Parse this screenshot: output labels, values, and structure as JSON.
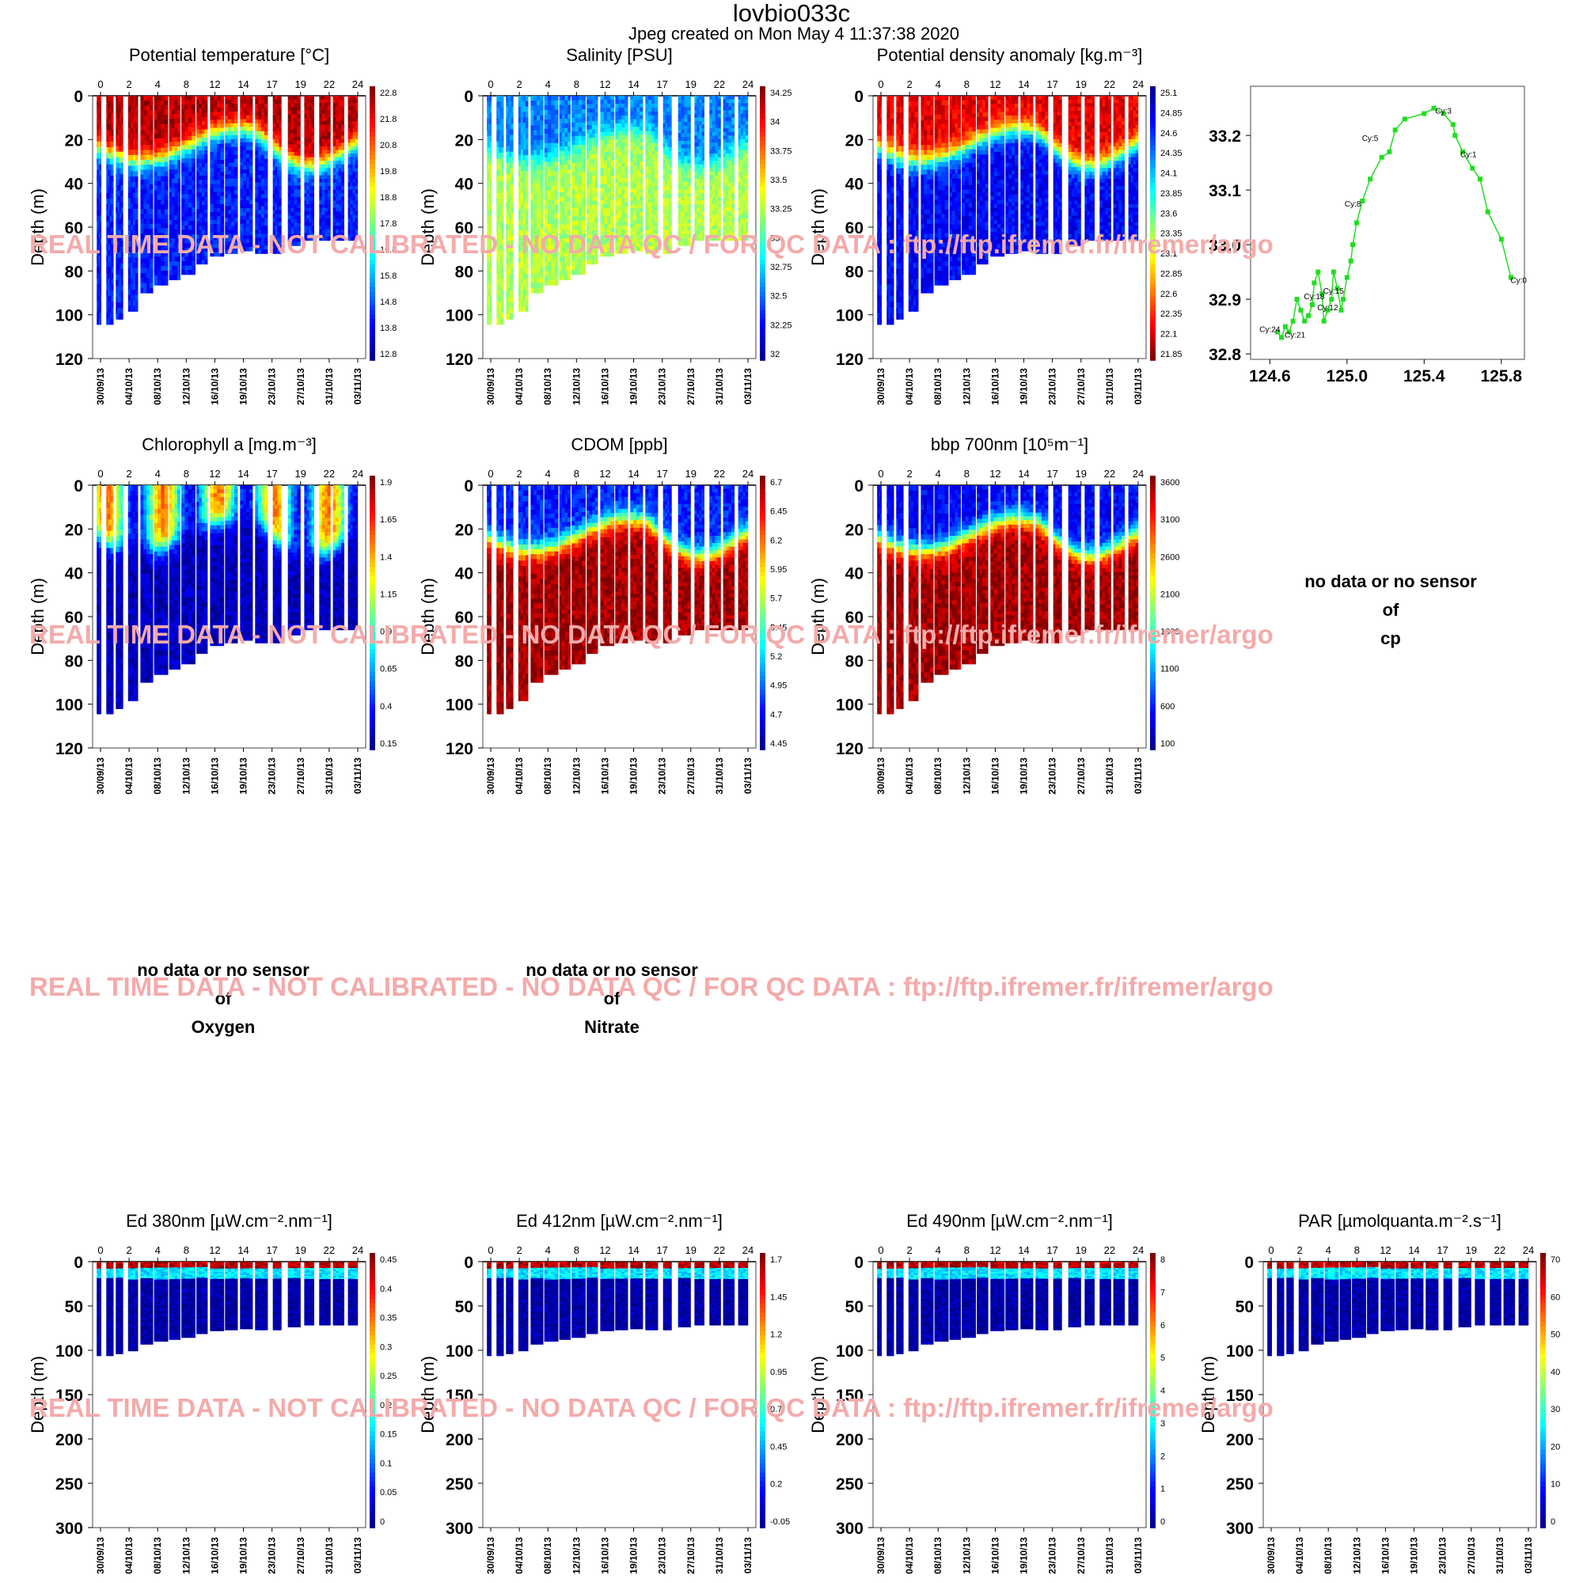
{
  "header": {
    "title": "lovbio033c",
    "subtitle": "Jpeg created on  Mon May  4 11:37:38 2020"
  },
  "watermark": "REAL TIME DATA - NOT CALIBRATED - NO DATA QC   /  FOR QC DATA : ftp://ftp.ifremer.fr/ifremer/argo",
  "colors": {
    "colormap": [
      "#00008f",
      "#0000ff",
      "#0080ff",
      "#00ffff",
      "#80ff80",
      "#ffff00",
      "#ff8000",
      "#ff0000",
      "#800000"
    ],
    "trajectory": "#22dd22",
    "watermark": "#f4aaaa"
  },
  "time_axis": {
    "top_ticks": [
      "0",
      "2",
      "4",
      "8",
      "12",
      "14",
      "17",
      "19",
      "22",
      "24"
    ],
    "bottom_ticks": [
      "30/09/13",
      "04/10/13",
      "08/10/13",
      "12/10/13",
      "16/10/13",
      "19/10/13",
      "23/10/13",
      "27/10/13",
      "31/10/13",
      "03/11/13"
    ]
  },
  "chart_data": [
    {
      "type": "heatmap",
      "id": "temperature",
      "title": "Potential temperature [°C]",
      "ylabel": "Depth (m)",
      "yticks": [
        "0",
        "20",
        "40",
        "60",
        "80",
        "100",
        "120"
      ],
      "ylim": [
        120,
        0
      ],
      "colorbar": [
        "22.8",
        "21.8",
        "20.8",
        "19.8",
        "18.8",
        "17.8",
        "16.8",
        "15.8",
        "14.8",
        "13.8",
        "12.8"
      ],
      "pattern": "stratified",
      "low_frac": 0.15,
      "high_frac": 0.95
    },
    {
      "type": "heatmap",
      "id": "salinity",
      "title": "Salinity [PSU]",
      "ylabel": "Depth (m)",
      "yticks": [
        "0",
        "20",
        "40",
        "60",
        "80",
        "100",
        "120"
      ],
      "ylim": [
        120,
        0
      ],
      "colorbar": [
        "34.25",
        "34",
        "33.75",
        "33.5",
        "33.25",
        "33",
        "32.75",
        "32.5",
        "32.25",
        "32"
      ],
      "pattern": "inverted",
      "low_frac": 0.25,
      "high_frac": 0.55
    },
    {
      "type": "heatmap",
      "id": "density",
      "title": "Potential density anomaly [kg.m⁻³]",
      "ylabel": "Depth (m)",
      "yticks": [
        "0",
        "20",
        "40",
        "60",
        "80",
        "100",
        "120"
      ],
      "ylim": [
        120,
        0
      ],
      "colorbar": [
        "25.1",
        "24.85",
        "24.6",
        "24.35",
        "24.1",
        "23.85",
        "23.6",
        "23.35",
        "23.1",
        "22.85",
        "22.6",
        "22.35",
        "22.1",
        "21.85"
      ],
      "colorbar_reversed": true,
      "pattern": "stratified",
      "low_frac": 0.12,
      "high_frac": 0.9
    },
    {
      "type": "line",
      "id": "trajectory",
      "xticks": [
        "124.6",
        "125.0",
        "125.4",
        "125.8"
      ],
      "yticks": [
        "32.8",
        "32.9",
        "33.0",
        "33.1",
        "33.2"
      ],
      "xlim": [
        124.5,
        125.92
      ],
      "ylim": [
        32.79,
        33.29
      ],
      "labels": [
        {
          "text": "Cy:0",
          "x": 125.89,
          "y": 32.93
        },
        {
          "text": "Cy:1",
          "x": 125.63,
          "y": 33.16
        },
        {
          "text": "Cy:3",
          "x": 125.5,
          "y": 33.24
        },
        {
          "text": "Cy:5",
          "x": 125.12,
          "y": 33.19
        },
        {
          "text": "Cy:8",
          "x": 125.03,
          "y": 33.07
        },
        {
          "text": "Cy:15",
          "x": 124.93,
          "y": 32.91
        },
        {
          "text": "Cy:18",
          "x": 124.83,
          "y": 32.9
        },
        {
          "text": "Cy:12",
          "x": 124.9,
          "y": 32.88
        },
        {
          "text": "Cy:24",
          "x": 124.6,
          "y": 32.84
        },
        {
          "text": "Cy:21",
          "x": 124.73,
          "y": 32.83
        }
      ],
      "x": [
        125.85,
        125.8,
        125.73,
        125.69,
        125.65,
        125.6,
        125.56,
        125.55,
        125.5,
        125.45,
        125.4,
        125.3,
        125.25,
        125.22,
        125.18,
        125.12,
        125.08,
        125.05,
        125.03,
        125.02,
        125.0,
        124.98,
        124.97,
        124.95,
        124.93,
        124.92,
        124.9,
        124.88,
        124.87,
        124.85,
        124.83,
        124.82,
        124.8,
        124.78,
        124.76,
        124.74,
        124.72,
        124.7,
        124.68,
        124.66,
        124.64
      ],
      "y": [
        32.94,
        33.01,
        33.06,
        33.12,
        33.14,
        33.17,
        33.2,
        33.22,
        33.24,
        33.25,
        33.24,
        33.23,
        33.21,
        33.17,
        33.16,
        33.12,
        33.08,
        33.04,
        33.0,
        32.97,
        32.94,
        32.9,
        32.88,
        32.92,
        32.95,
        32.9,
        32.88,
        32.86,
        32.91,
        32.95,
        32.93,
        32.89,
        32.87,
        32.86,
        32.88,
        32.9,
        32.86,
        32.84,
        32.85,
        32.83,
        32.84
      ]
    },
    {
      "type": "heatmap",
      "id": "chla",
      "title": "Chlorophyll a [mg.m⁻³]",
      "ylabel": "Depth (m)",
      "yticks": [
        "0",
        "20",
        "40",
        "60",
        "80",
        "100",
        "120"
      ],
      "ylim": [
        120,
        0
      ],
      "colorbar": [
        "1.9",
        "1.65",
        "1.4",
        "1.15",
        "0.9",
        "0.65",
        "0.4",
        "0.15"
      ],
      "pattern": "surface_patchy",
      "low_frac": 0.05,
      "high_frac": 0.7
    },
    {
      "type": "heatmap",
      "id": "cdom",
      "title": "CDOM  [ppb]",
      "ylabel": "Depth (m)",
      "yticks": [
        "0",
        "20",
        "40",
        "60",
        "80",
        "100",
        "120"
      ],
      "ylim": [
        120,
        0
      ],
      "colorbar": [
        "6.7",
        "6.45",
        "6.2",
        "5.95",
        "5.7",
        "5.45",
        "5.2",
        "4.95",
        "4.7",
        "4.45"
      ],
      "pattern": "inverted",
      "low_frac": 0.15,
      "high_frac": 0.97
    },
    {
      "type": "heatmap",
      "id": "bbp",
      "title": "bbp 700nm [10⁵m⁻¹]",
      "ylabel": "Depth (m)",
      "yticks": [
        "0",
        "20",
        "40",
        "60",
        "80",
        "100",
        "120"
      ],
      "ylim": [
        120,
        0
      ],
      "colorbar": [
        "3600",
        "3100",
        "2600",
        "2100",
        "1600",
        "1100",
        "600",
        "100"
      ],
      "pattern": "inverted",
      "low_frac": 0.12,
      "high_frac": 0.97
    },
    {
      "type": "heatmap",
      "id": "ed380",
      "title": "Ed 380nm [µW.cm⁻².nm⁻¹]",
      "ylabel": "Depth (m)",
      "yticks": [
        "0",
        "50",
        "100",
        "150",
        "200",
        "250",
        "300"
      ],
      "ylim": [
        310,
        0
      ],
      "colorbar": [
        "0.45",
        "0.4",
        "0.35",
        "0.3",
        "0.25",
        "0.2",
        "0.15",
        "0.1",
        "0.05",
        "0"
      ],
      "pattern": "irradiance",
      "low_frac": 0.02,
      "high_frac": 0.95
    },
    {
      "type": "heatmap",
      "id": "ed412",
      "title": "Ed 412nm [µW.cm⁻².nm⁻¹]",
      "ylabel": "Depth (m)",
      "yticks": [
        "0",
        "50",
        "100",
        "150",
        "200",
        "250",
        "300"
      ],
      "ylim": [
        310,
        0
      ],
      "colorbar": [
        "1.7",
        "1.45",
        "1.2",
        "0.95",
        "0.7",
        "0.45",
        "0.2",
        "-0.05"
      ],
      "pattern": "irradiance",
      "low_frac": 0.02,
      "high_frac": 0.95
    },
    {
      "type": "heatmap",
      "id": "ed490",
      "title": "Ed 490nm [µW.cm⁻².nm⁻¹]",
      "ylabel": "Depth (m)",
      "yticks": [
        "0",
        "50",
        "100",
        "150",
        "200",
        "250",
        "300"
      ],
      "ylim": [
        310,
        0
      ],
      "colorbar": [
        "8",
        "7",
        "6",
        "5",
        "4",
        "3",
        "2",
        "1",
        "0"
      ],
      "pattern": "irradiance",
      "low_frac": 0.02,
      "high_frac": 0.95
    },
    {
      "type": "heatmap",
      "id": "par",
      "title": "PAR [µmolquanta.m⁻².s⁻¹]",
      "ylabel": "Depth (m)",
      "yticks": [
        "0",
        "50",
        "100",
        "150",
        "200",
        "250",
        "300"
      ],
      "ylim": [
        310,
        0
      ],
      "colorbar": [
        "70",
        "60",
        "50",
        "40",
        "30",
        "20",
        "10",
        "0"
      ],
      "pattern": "irradiance",
      "low_frac": 0.02,
      "high_frac": 0.95
    }
  ],
  "no_data": [
    {
      "lines": [
        "no data or no sensor",
        "of",
        "cp"
      ]
    },
    {
      "lines": [
        "no data or no sensor",
        "of",
        "Oxygen"
      ]
    },
    {
      "lines": [
        "no data or no sensor",
        "of",
        "Nitrate"
      ]
    }
  ]
}
